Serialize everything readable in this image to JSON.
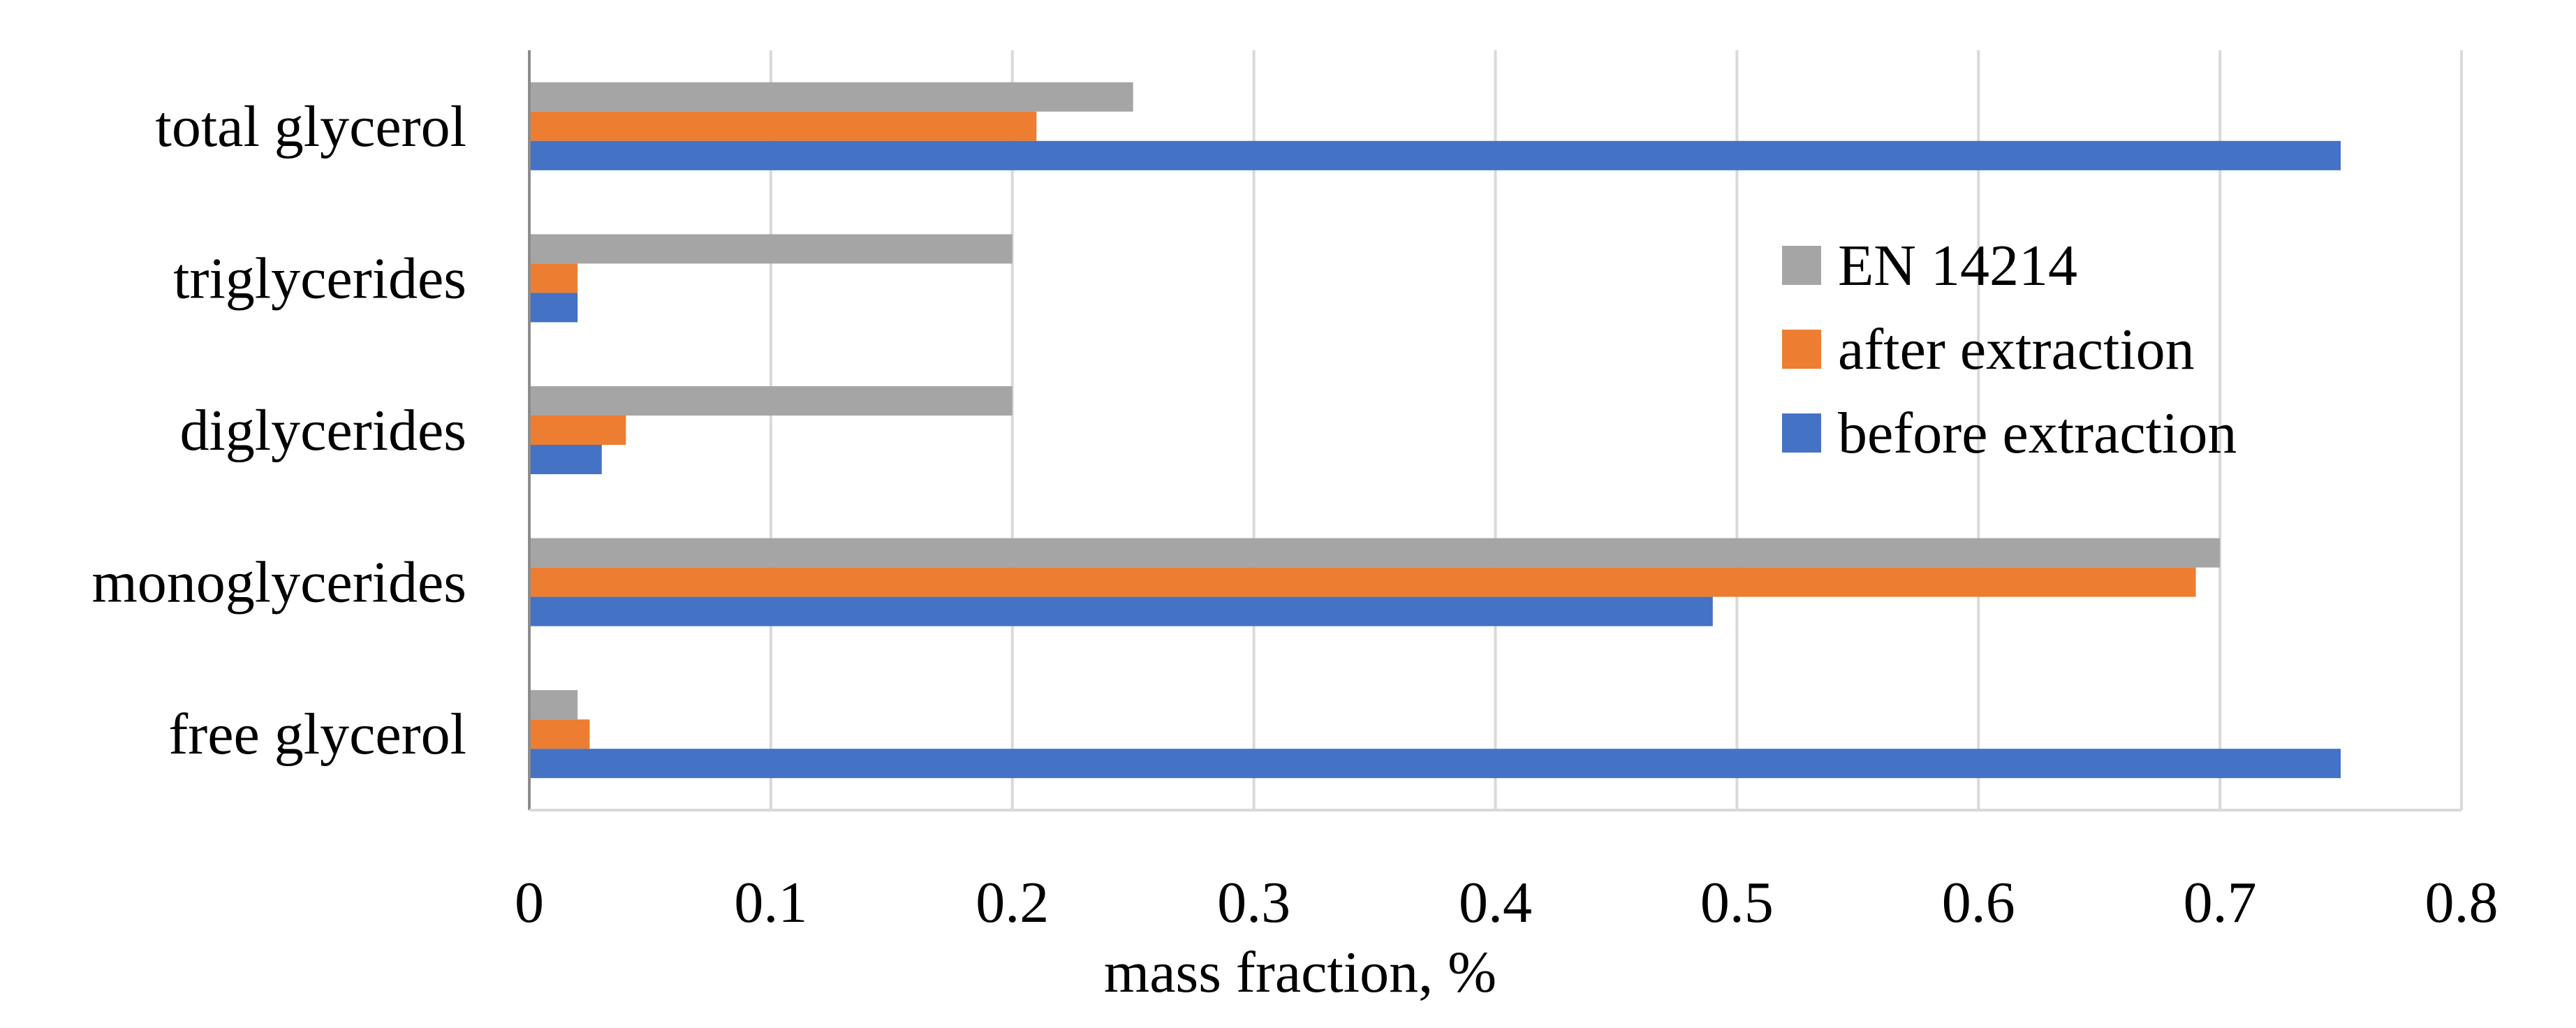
{
  "chart_data": {
    "type": "bar",
    "orientation": "horizontal",
    "title": "",
    "xlabel": "mass fraction, %",
    "ylabel": "",
    "xlim": [
      0,
      0.8
    ],
    "x_ticks": [
      0,
      0.1,
      0.2,
      0.3,
      0.4,
      0.5,
      0.6,
      0.7,
      0.8
    ],
    "x_tick_labels": [
      "0",
      "0.1",
      "0.2",
      "0.3",
      "0.4",
      "0.5",
      "0.6",
      "0.7",
      "0.8"
    ],
    "grid": "vertical",
    "legend_position": "right",
    "categories": [
      "total glycerol",
      "triglycerides",
      "diglycerides",
      "monoglycerides",
      "free glycerol"
    ],
    "series": [
      {
        "name": "EN 14214",
        "color": "#A5A5A5",
        "values": [
          0.25,
          0.2,
          0.2,
          0.7,
          0.02
        ]
      },
      {
        "name": "after extraction",
        "color": "#ED7D31",
        "values": [
          0.21,
          0.02,
          0.04,
          0.69,
          0.025
        ]
      },
      {
        "name": "before extraction",
        "color": "#4472C4",
        "values": [
          0.75,
          0.02,
          0.03,
          0.49,
          0.75
        ]
      }
    ],
    "legend_order": [
      "EN 14214",
      "after extraction",
      "before extraction"
    ]
  }
}
